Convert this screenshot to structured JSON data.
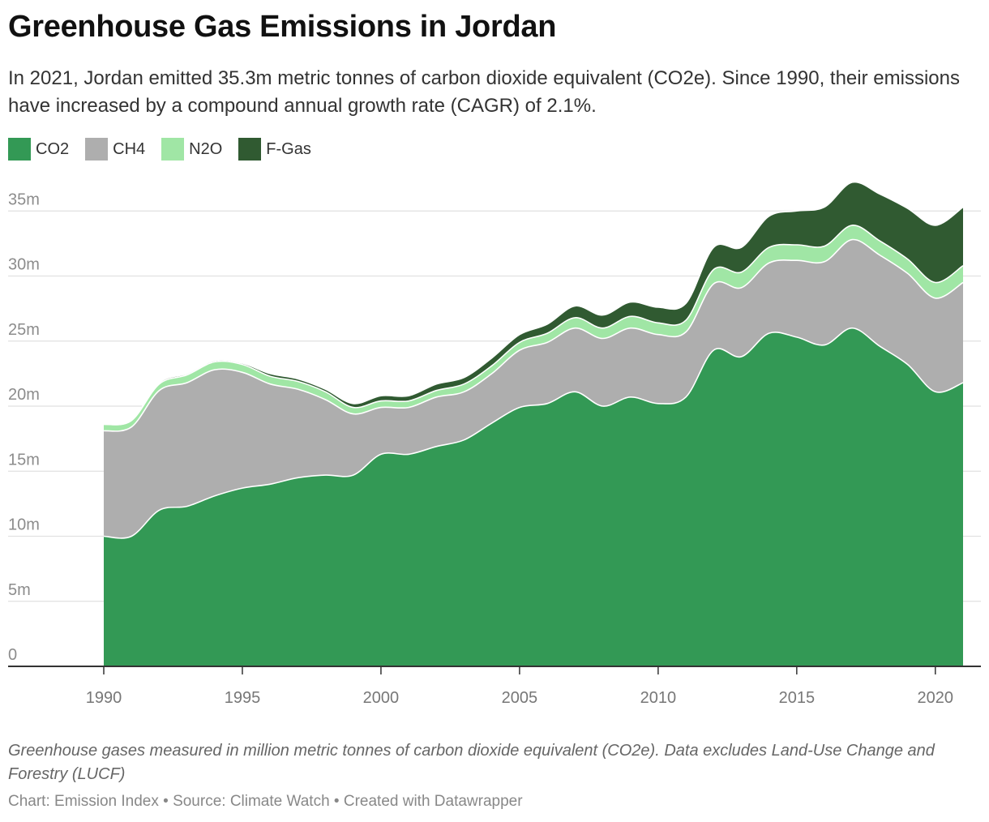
{
  "title": "Greenhouse Gas Emissions in Jordan",
  "subtitle": "In 2021, Jordan emitted 35.3m metric tonnes of carbon dioxide equivalent (CO2e). Since 1990, their emissions have increased by a compound annual growth rate (CAGR) of 2.1%.",
  "notes": "Greenhouse gases measured in million metric tonnes of carbon dioxide equivalent (CO2e). Data excludes Land-Use Change and Forestry (LUCF)",
  "byline": "Chart: Emission Index • Source: Climate Watch • Created with Datawrapper",
  "colors": {
    "CO2": "#339955",
    "CH4": "#aeaeae",
    "N2O": "#a0e6a5",
    "F-Gas": "#305a31"
  },
  "chart_data": {
    "type": "area",
    "stacked": true,
    "x": [
      1990,
      1991,
      1992,
      1993,
      1994,
      1995,
      1996,
      1997,
      1998,
      1999,
      2000,
      2001,
      2002,
      2003,
      2004,
      2005,
      2006,
      2007,
      2008,
      2009,
      2010,
      2011,
      2012,
      2013,
      2014,
      2015,
      2016,
      2017,
      2018,
      2019,
      2020,
      2021
    ],
    "series": [
      {
        "name": "CO2",
        "values": [
          10.0,
          10.0,
          12.0,
          12.3,
          13.1,
          13.7,
          14.0,
          14.5,
          14.7,
          14.7,
          16.3,
          16.3,
          16.9,
          17.4,
          18.7,
          19.9,
          20.2,
          21.1,
          20.0,
          20.7,
          20.2,
          20.7,
          24.3,
          23.8,
          25.6,
          25.3,
          24.7,
          26.0,
          24.6,
          23.2,
          21.1,
          21.8
        ]
      },
      {
        "name": "CH4",
        "values": [
          8.1,
          8.4,
          9.2,
          9.5,
          9.7,
          8.9,
          7.7,
          6.8,
          5.8,
          4.7,
          3.6,
          3.6,
          3.8,
          3.7,
          3.8,
          4.4,
          4.7,
          4.9,
          5.2,
          5.3,
          5.3,
          5.0,
          5.1,
          5.3,
          5.4,
          5.9,
          6.4,
          6.8,
          7.0,
          7.0,
          7.2,
          7.7
        ]
      },
      {
        "name": "N2O",
        "values": [
          0.5,
          0.5,
          0.5,
          0.6,
          0.6,
          0.6,
          0.6,
          0.6,
          0.6,
          0.5,
          0.5,
          0.5,
          0.5,
          0.6,
          0.6,
          0.6,
          0.7,
          0.8,
          0.8,
          0.9,
          0.9,
          0.9,
          1.1,
          1.2,
          1.2,
          1.2,
          1.2,
          1.1,
          1.1,
          1.1,
          1.2,
          1.3
        ]
      },
      {
        "name": "F-Gas",
        "values": [
          0.0,
          0.0,
          0.1,
          0.1,
          0.1,
          0.1,
          0.2,
          0.2,
          0.2,
          0.3,
          0.4,
          0.4,
          0.5,
          0.5,
          0.6,
          0.6,
          0.7,
          0.9,
          1.0,
          1.1,
          1.2,
          1.3,
          1.7,
          1.9,
          2.4,
          2.6,
          3.0,
          3.3,
          3.6,
          3.9,
          4.4,
          4.5
        ]
      }
    ],
    "y_ticks": [
      0,
      5,
      10,
      15,
      20,
      25,
      30,
      35
    ],
    "y_tick_labels": [
      "0",
      "5m",
      "10m",
      "15m",
      "20m",
      "25m",
      "30m",
      "35m"
    ],
    "x_ticks": [
      1990,
      1995,
      2000,
      2005,
      2010,
      2015,
      2020
    ],
    "x_tick_labels": [
      "1990",
      "1995",
      "2000",
      "2005",
      "2010",
      "2015",
      "2020"
    ],
    "xlim": [
      1990,
      2021
    ],
    "ylim": [
      0,
      35
    ],
    "grid": true,
    "legend": "top-left"
  }
}
